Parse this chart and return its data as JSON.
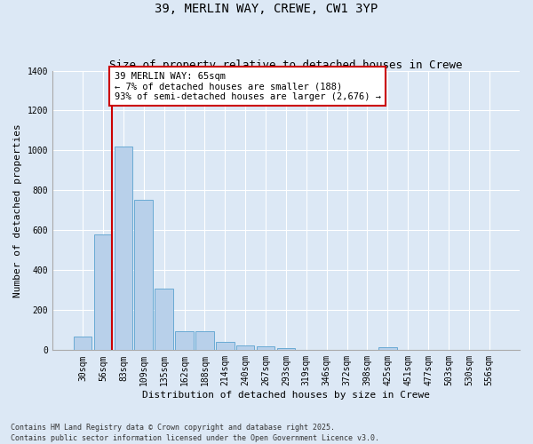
{
  "title_line1": "39, MERLIN WAY, CREWE, CW1 3YP",
  "title_line2": "Size of property relative to detached houses in Crewe",
  "xlabel": "Distribution of detached houses by size in Crewe",
  "ylabel": "Number of detached properties",
  "categories": [
    "30sqm",
    "56sqm",
    "83sqm",
    "109sqm",
    "135sqm",
    "162sqm",
    "188sqm",
    "214sqm",
    "240sqm",
    "267sqm",
    "293sqm",
    "319sqm",
    "346sqm",
    "372sqm",
    "398sqm",
    "425sqm",
    "451sqm",
    "477sqm",
    "503sqm",
    "530sqm",
    "556sqm"
  ],
  "values": [
    70,
    580,
    1020,
    755,
    310,
    95,
    95,
    42,
    22,
    18,
    10,
    0,
    0,
    0,
    0,
    15,
    0,
    0,
    0,
    0,
    0
  ],
  "bar_color": "#b8d0ea",
  "bar_edge_color": "#6aaad4",
  "annotation_text": "39 MERLIN WAY: 65sqm\n← 7% of detached houses are smaller (188)\n93% of semi-detached houses are larger (2,676) →",
  "annotation_box_facecolor": "#ffffff",
  "annotation_box_edgecolor": "#cc0000",
  "vline_color": "#cc0000",
  "vline_x": 1.42,
  "background_color": "#dce8f5",
  "plot_bg_color": "#dce8f5",
  "ylim": [
    0,
    1400
  ],
  "yticks": [
    0,
    200,
    400,
    600,
    800,
    1000,
    1200,
    1400
  ],
  "footer_text": "Contains HM Land Registry data © Crown copyright and database right 2025.\nContains public sector information licensed under the Open Government Licence v3.0.",
  "title_fontsize": 10,
  "subtitle_fontsize": 9,
  "axis_label_fontsize": 8,
  "tick_fontsize": 7,
  "annotation_fontsize": 7.5,
  "footer_fontsize": 6
}
